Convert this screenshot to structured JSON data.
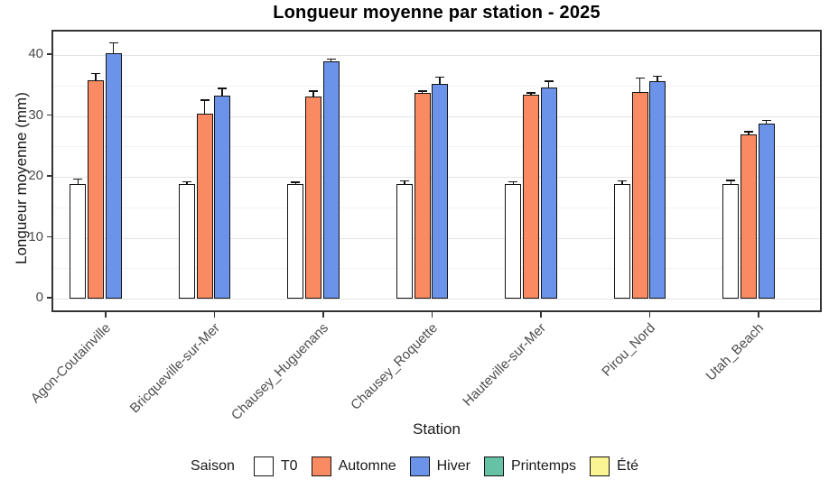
{
  "chart_data": {
    "type": "bar",
    "title": "Longueur moyenne par station - 2025",
    "xlabel": "Station",
    "ylabel": "Longueur moyenne (mm)",
    "ylim": [
      0,
      44
    ],
    "yticks": [
      0,
      10,
      20,
      30,
      40
    ],
    "yticks_minor": [
      5,
      15,
      25,
      35
    ],
    "grid": true,
    "categories": [
      "Agon-Coutainville",
      "Bricqueville-sur-Mer",
      "Chausey_Huguenans",
      "Chausey_Roquette",
      "Hauteville-sur-Mer",
      "Pirou_Nord",
      "Utah_Beach"
    ],
    "series": [
      {
        "name": "T0",
        "color": "#FFFFFF",
        "values": [
          18.8,
          18.8,
          18.8,
          18.8,
          18.8,
          18.8,
          18.8
        ],
        "errors": [
          0.9,
          0.5,
          0.4,
          0.6,
          0.5,
          0.6,
          0.7
        ]
      },
      {
        "name": "Automne",
        "color": "#FA8A62",
        "values": [
          35.9,
          30.3,
          33.2,
          33.8,
          33.5,
          33.9,
          27.0
        ],
        "errors": [
          1.2,
          2.4,
          1.0,
          0.4,
          0.4,
          2.4,
          0.5
        ]
      },
      {
        "name": "Hiver",
        "color": "#6A93E9",
        "values": [
          40.3,
          33.4,
          39.0,
          35.3,
          34.7,
          35.7,
          28.7
        ],
        "errors": [
          1.8,
          1.2,
          0.4,
          1.2,
          1.1,
          0.9,
          0.7
        ]
      }
    ],
    "legend": {
      "title": "Saison",
      "position": "bottom",
      "items": [
        {
          "label": "T0",
          "color": "#FFFFFF"
        },
        {
          "label": "Automne",
          "color": "#FA8A62"
        },
        {
          "label": "Hiver",
          "color": "#6A93E9"
        },
        {
          "label": "Printemps",
          "color": "#66C2A5"
        },
        {
          "label": "Été",
          "color": "#FBF493"
        }
      ]
    },
    "colors": {
      "panel_border": "#333333",
      "bar_border": "#141414",
      "gridline_major": "#e4e4e4",
      "gridline_minor": "#f2f2f2",
      "tick_label": "#4d4d4d"
    }
  }
}
